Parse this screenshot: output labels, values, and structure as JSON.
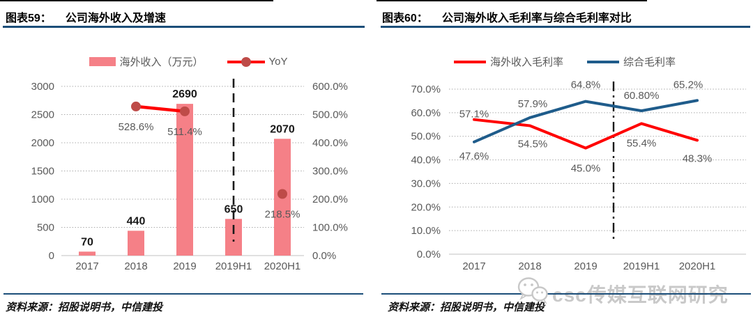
{
  "panels": [
    {
      "figure_label": "图表59：",
      "title": "公司海外收入及增速",
      "source": "资料来源：招股说明书，中信建投"
    },
    {
      "figure_label": "图表60：",
      "title": "公司海外收入毛利率与综合毛利率对比",
      "source": "资料来源：招股说明书，中信建投"
    }
  ],
  "watermark": {
    "text": "csc传媒互联网研究",
    "icon": "wechat-logo"
  },
  "colors": {
    "title_rule_blue": "#1B4E79",
    "bar_pink": "#F58087",
    "yoy_line_red": "#FF0000",
    "yoy_marker_dark_red": "#BE4B48",
    "overseas_margin_red": "#FF0000",
    "overall_margin_blue": "#1F5C8B",
    "axis_text_gray": "#595959",
    "gridline_gray": "#A9A9A9",
    "divider_black": "#1A1A1A",
    "watermark_gray": "#C9C9C9"
  },
  "chart_data": [
    {
      "type": "bar",
      "title": "公司海外收入及增速",
      "categories": [
        "2017",
        "2018",
        "2019",
        "2019H1",
        "2020H1"
      ],
      "series": [
        {
          "name": "海外收入（万元）",
          "chart_type": "bar",
          "axis": "left",
          "values": [
            70,
            440,
            2690,
            650,
            2070
          ],
          "labels": [
            "70",
            "440",
            "2690",
            "650",
            "2070"
          ],
          "color": "#F58087"
        },
        {
          "name": "YoY",
          "chart_type": "line",
          "axis": "right",
          "values": [
            null,
            528.6,
            511.4,
            null,
            218.5
          ],
          "labels": [
            "",
            "528.6%",
            "511.4%",
            "",
            "218.5%"
          ],
          "color": "#FF0000",
          "marker_color": "#BE4B48"
        }
      ],
      "left_axis": {
        "min": 0,
        "max": 3000,
        "step": 500,
        "ticks": [
          "0",
          "500",
          "1000",
          "1500",
          "2000",
          "2500",
          "3000"
        ]
      },
      "right_axis": {
        "min": 0,
        "max": 600,
        "step": 100,
        "ticks": [
          "0.0%",
          "100.0%",
          "200.0%",
          "300.0%",
          "400.0%",
          "500.0%",
          "600.0%"
        ]
      },
      "divider": {
        "style": "dashed",
        "position": "vertical line at 2019H1 separating annual and half-year data"
      },
      "legend_position": "top",
      "grid": "horizontal dotted"
    },
    {
      "type": "line",
      "title": "公司海外收入毛利率与综合毛利率对比",
      "categories": [
        "2017",
        "2018",
        "2019",
        "2019H1",
        "2020H1"
      ],
      "series": [
        {
          "name": "海外收入毛利率",
          "values": [
            57.1,
            54.5,
            45.0,
            55.4,
            48.3
          ],
          "labels": [
            "57.1%",
            "54.5%",
            "45.0%",
            "55.4%",
            "48.3%"
          ],
          "color": "#FF0000"
        },
        {
          "name": "综合毛利率",
          "values": [
            47.6,
            57.9,
            64.8,
            60.8,
            65.2
          ],
          "labels": [
            "47.6%",
            "57.9%",
            "64.8%",
            "60.80%",
            "65.2%"
          ],
          "color": "#1F5C8B"
        }
      ],
      "y_axis": {
        "min": 0,
        "max": 70,
        "step": 10,
        "unit": "%",
        "ticks": [
          "0.0%",
          "10.0%",
          "20.0%",
          "30.0%",
          "40.0%",
          "50.0%",
          "60.0%",
          "70.0%"
        ]
      },
      "divider": {
        "style": "dash-dot",
        "position": "vertical line between 2019 and 2019H1"
      },
      "legend_position": "top",
      "grid": "horizontal dotted"
    }
  ]
}
